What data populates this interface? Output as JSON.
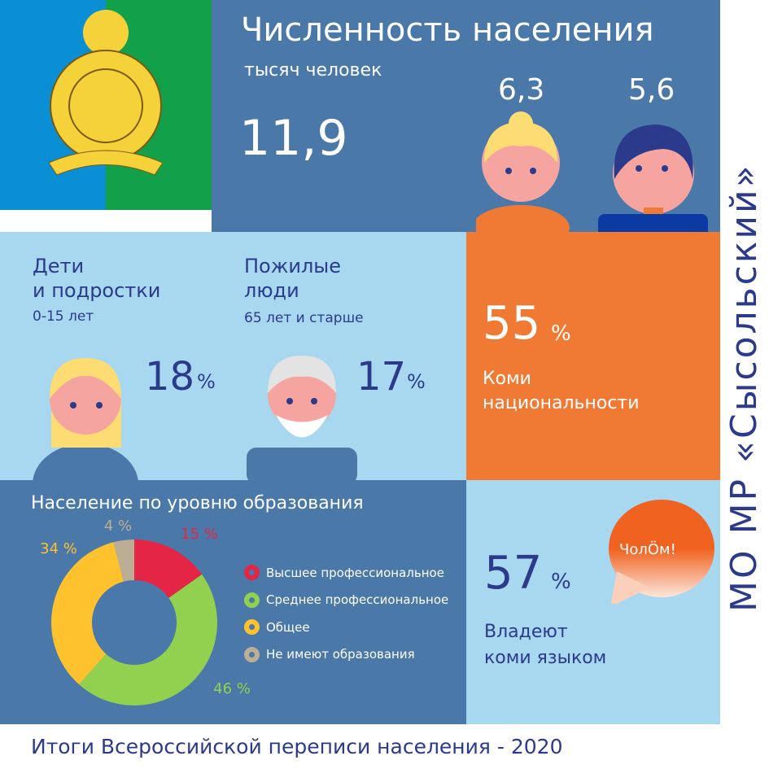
{
  "header": {
    "title": "Численность населения",
    "unit": "тысяч человек",
    "total": "11,9",
    "women": "6,3",
    "men": "5,6"
  },
  "children": {
    "title1": "Дети",
    "title2": "и подростки",
    "age": "0-15 лет",
    "value": "18",
    "pct": "%"
  },
  "elderly": {
    "title1": "Пожилые",
    "title2": "люди",
    "age": "65 лет и старше",
    "value": "17",
    "pct": "%"
  },
  "komi": {
    "value": "55",
    "pct": "%",
    "label1": "Коми",
    "label2": "национальности"
  },
  "language": {
    "value": "57",
    "pct": "%",
    "label1": "Владеют",
    "label2": "коми языком",
    "bubble": "ЧолӦм!"
  },
  "side_title": "МО МР «Сысольский»",
  "footer": "Итоги Всероссийской переписи населения - 2020",
  "chart_data": {
    "type": "pie",
    "title": "Население по уровню образования",
    "categories": [
      "Высшее профессиональное",
      "Среднее профессиональное",
      "Общее",
      "Не имеют образования"
    ],
    "values": [
      15,
      46,
      34,
      4
    ],
    "labels": [
      "15 %",
      "46 %",
      "34 %",
      "4 %"
    ],
    "colors": [
      "#e42546",
      "#92d050",
      "#fec22f",
      "#bcae94"
    ],
    "legend": "right",
    "donut": true
  }
}
